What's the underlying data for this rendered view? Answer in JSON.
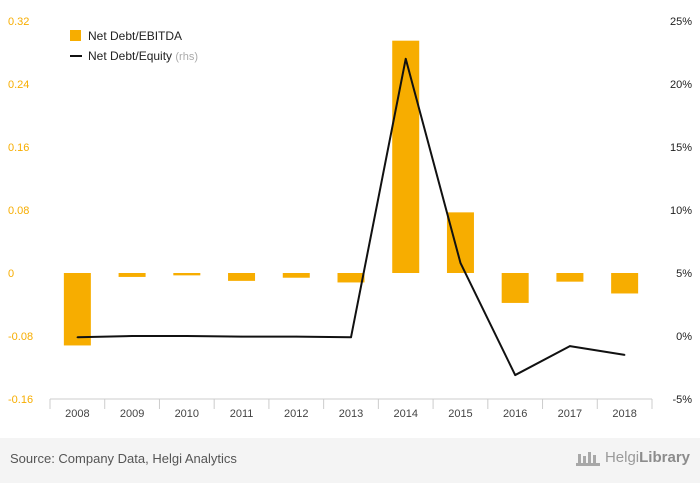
{
  "chart_data": {
    "type": "bar+line",
    "categories": [
      "2008",
      "2009",
      "2010",
      "2011",
      "2012",
      "2013",
      "2014",
      "2015",
      "2016",
      "2017",
      "2018"
    ],
    "series": [
      {
        "name": "Net Debt/EBITDA",
        "type": "bar",
        "axis": "left",
        "values": [
          -0.092,
          -0.005,
          -0.003,
          -0.01,
          -0.006,
          -0.012,
          0.295,
          0.077,
          -0.038,
          -0.011,
          -0.026
        ]
      },
      {
        "name": "Net Debt/Equity",
        "type": "line",
        "axis": "right",
        "values": [
          -0.1,
          0.0,
          0.0,
          -0.05,
          -0.05,
          -0.1,
          22.0,
          5.8,
          -3.1,
          -0.8,
          -1.5
        ]
      }
    ],
    "left_axis": {
      "ylim": [
        -0.16,
        0.32
      ],
      "ticks": [
        -0.16,
        -0.08,
        0,
        0.08,
        0.16,
        0.24,
        0.32
      ],
      "tick_labels": [
        "-0.16",
        "-0.08",
        "0",
        "0.08",
        "0.16",
        "0.24",
        "0.32"
      ]
    },
    "right_axis": {
      "ylim": [
        -5,
        25
      ],
      "ticks": [
        -5,
        0,
        5,
        10,
        15,
        20,
        25
      ],
      "tick_labels": [
        "-5%",
        "0%",
        "5%",
        "10%",
        "15%",
        "20%",
        "25%"
      ]
    },
    "legend": {
      "position": "top-left",
      "entries": [
        {
          "label": "Net Debt/EBITDA",
          "suffix": ""
        },
        {
          "label": "Net Debt/Equity",
          "suffix": "(rhs)"
        }
      ]
    },
    "colors": {
      "bar": "#f7ad00",
      "line": "#111111",
      "left_tick": "#f7ad00",
      "right_tick": "#222222"
    }
  },
  "footer": {
    "source": "Source: Company Data, Helgi Analytics",
    "brand_light": "Helgi",
    "brand_bold": "Library"
  }
}
